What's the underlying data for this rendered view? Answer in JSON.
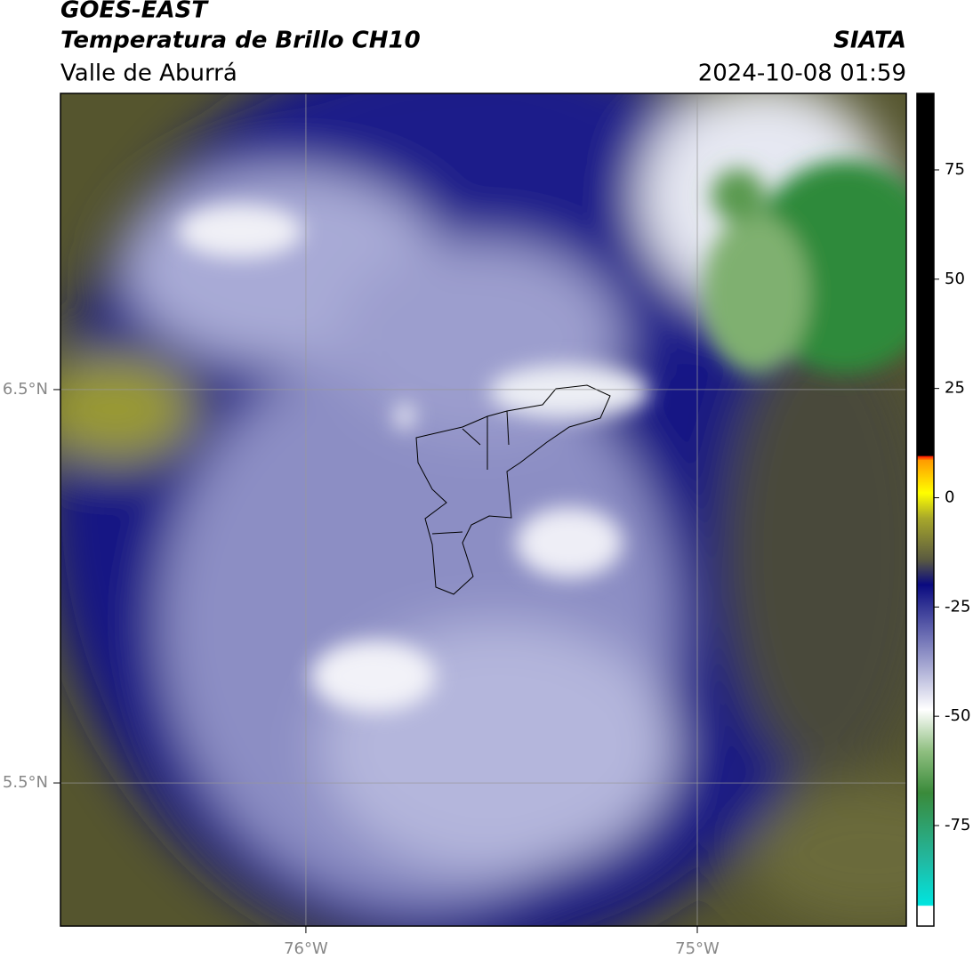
{
  "chart_data": {
    "type": "map",
    "title": "GOES-EAST",
    "subtitle": "Temperatura de Brillo CH10",
    "region": "Valle de Aburrá",
    "source": "SIATA",
    "timestamp": "2024-10-08 01:59",
    "xlim": [
      -76.627,
      -74.466
    ],
    "ylim": [
      5.136,
      7.253
    ],
    "xticks": [
      {
        "value": -76,
        "label": "76°W"
      },
      {
        "value": -75,
        "label": "75°W"
      }
    ],
    "yticks": [
      {
        "value": 6.5,
        "label": "6.5°N"
      },
      {
        "value": 5.5,
        "label": "5.5°N"
      }
    ],
    "grid": true,
    "colorbar": {
      "lim": [
        -98,
        92.5
      ],
      "ticks": [
        75,
        50,
        25,
        0,
        -25,
        -50,
        -75
      ]
    }
  }
}
